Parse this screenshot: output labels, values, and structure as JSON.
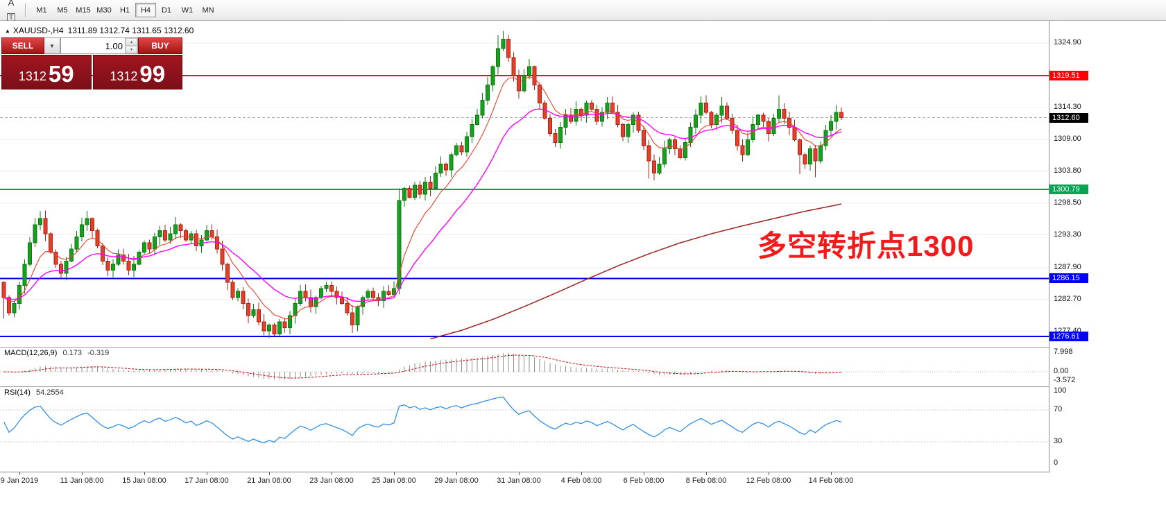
{
  "toolbar": {
    "icons": [
      {
        "name": "charts-list-icon",
        "glyph": "≡"
      },
      {
        "name": "text-label-icon",
        "glyph": "A"
      },
      {
        "name": "text-box-icon",
        "glyph": "T",
        "boxed": true
      },
      {
        "name": "drawing-tools-icon",
        "glyph": "✎",
        "caret": "▾"
      }
    ],
    "timeframes": [
      {
        "label": "M1"
      },
      {
        "label": "M5"
      },
      {
        "label": "M15"
      },
      {
        "label": "M30"
      },
      {
        "label": "H1"
      },
      {
        "label": "H4",
        "active": true
      },
      {
        "label": "D1"
      },
      {
        "label": "W1"
      },
      {
        "label": "MN"
      }
    ]
  },
  "symbol_header": {
    "expand_icon": "▲",
    "symbol": "XAUUSD-,H4",
    "ohlc": "1311.89 1312.74 1311.65 1312.60"
  },
  "trade_panel": {
    "sell_label": "SELL",
    "buy_label": "BUY",
    "lot_value": "1.00",
    "bid_prefix": "1312",
    "bid_big": "59",
    "ask_prefix": "1312",
    "ask_big": "99"
  },
  "annotation": {
    "text": "多空转折点1300",
    "color": "#f21b1b"
  },
  "indicators": {
    "macd": {
      "name": "MACD(12,26,9)",
      "value_main": "0.173",
      "value_signal": "-0.319",
      "axis_ticks": [
        {
          "label": "7.998",
          "value": 7.998
        },
        {
          "label": "0.00",
          "value": 0
        },
        {
          "label": "-3.572",
          "value": -3.572
        }
      ]
    },
    "rsi": {
      "name": "RSI(14)",
      "value": "54.2554",
      "axis_ticks": [
        {
          "label": "100",
          "value": 100
        },
        {
          "label": "70",
          "value": 70
        },
        {
          "label": "30",
          "value": 30
        },
        {
          "label": "0",
          "value": 0
        }
      ],
      "levels": [
        70,
        30
      ]
    }
  },
  "price_axis": {
    "ticks": [
      1324.9,
      1314.3,
      1309.0,
      1303.8,
      1298.5,
      1293.3,
      1287.9,
      1282.7,
      1277.4
    ],
    "level_labels": [
      {
        "text": "1319.51",
        "bg": "#ff0000",
        "price": 1319.51
      },
      {
        "text": "1312.60",
        "bg": "#000000",
        "price": 1312.6
      },
      {
        "text": "1300.79",
        "bg": "#00A651",
        "price": 1300.79
      },
      {
        "text": "1286.15",
        "bg": "#0000ff",
        "price": 1286.15
      },
      {
        "text": "1276.61",
        "bg": "#0000ff",
        "price": 1276.61
      }
    ]
  },
  "time_axis": {
    "labels": [
      "9 Jan 2019",
      "11 Jan 08:00",
      "15 Jan 08:00",
      "17 Jan 08:00",
      "21 Jan 08:00",
      "23 Jan 08:00",
      "25 Jan 08:00",
      "29 Jan 08:00",
      "31 Jan 08:00",
      "4 Feb 08:00",
      "6 Feb 08:00",
      "8 Feb 08:00",
      "12 Feb 08:00",
      "14 Feb 08:00"
    ]
  },
  "chart_data": {
    "type": "candlestick",
    "symbol": "XAUUSD-",
    "timeframe": "H4",
    "ohlc_current": {
      "open": 1311.89,
      "high": 1312.74,
      "low": 1311.65,
      "close": 1312.6
    },
    "first_open": 1285.5,
    "closes": [
      1283,
      1280.5,
      1282,
      1285,
      1288.5,
      1292,
      1295,
      1296,
      1293.5,
      1290.5,
      1288.5,
      1287,
      1289,
      1291,
      1293,
      1295,
      1296,
      1294,
      1291.5,
      1289,
      1287.5,
      1288.5,
      1290,
      1289,
      1287.5,
      1288.5,
      1290.5,
      1292,
      1291,
      1293,
      1294,
      1292.5,
      1293.5,
      1295,
      1294,
      1292.5,
      1293.5,
      1291.5,
      1292.5,
      1294,
      1293,
      1291,
      1288.5,
      1285.5,
      1283,
      1284,
      1282,
      1280,
      1281,
      1279,
      1277.5,
      1278.5,
      1277,
      1279,
      1278,
      1280,
      1282,
      1284,
      1283,
      1281.5,
      1283,
      1284.5,
      1285,
      1284,
      1283,
      1282,
      1280.5,
      1278.5,
      1281.5,
      1283,
      1284,
      1283,
      1282.5,
      1284,
      1283.5,
      1284.5,
      1299,
      1301,
      1299.5,
      1301.5,
      1300,
      1302,
      1301,
      1303.5,
      1305,
      1304,
      1306.5,
      1308,
      1307,
      1309.5,
      1311.5,
      1313,
      1315.5,
      1318,
      1321,
      1324,
      1325.5,
      1322.5,
      1319.5,
      1317,
      1319.5,
      1321,
      1318,
      1315,
      1312.5,
      1310,
      1308.5,
      1311,
      1313,
      1312,
      1314,
      1313,
      1315,
      1314,
      1312,
      1313.5,
      1315,
      1313.5,
      1311.5,
      1309.5,
      1311.5,
      1313,
      1310.5,
      1308,
      1305.5,
      1303.5,
      1305,
      1307.5,
      1309,
      1307.5,
      1306,
      1308.5,
      1311,
      1313,
      1315,
      1313.5,
      1311.5,
      1313,
      1314.5,
      1312.5,
      1310.5,
      1308,
      1306.5,
      1309,
      1311.5,
      1313,
      1312,
      1310,
      1312.5,
      1314,
      1312.5,
      1311,
      1309,
      1306.5,
      1305,
      1307.5,
      1305.5,
      1308,
      1310.5,
      1312,
      1313.5,
      1312.6
    ],
    "wick_overrides": {
      "0": {
        "l": 1279.5
      },
      "50": {
        "l": 1276.8
      },
      "52": {
        "l": 1276.7
      },
      "67": {
        "l": 1277.2
      },
      "76": {
        "l": 1283.5,
        "h": 1301.0
      },
      "95": {
        "h": 1326.2
      },
      "96": {
        "h": 1326.9
      },
      "124": {
        "l": 1302.6
      },
      "138": {
        "h": 1316.0
      },
      "149": {
        "h": 1316.3
      },
      "153": {
        "l": 1303.3
      },
      "156": {
        "l": 1302.8
      },
      "161": {
        "h": 1314.3
      }
    },
    "levels": [
      {
        "price": 1319.51,
        "color": "#ee1111",
        "width": 2
      },
      {
        "price": 1300.79,
        "color": "#00A651",
        "width": 2
      },
      {
        "price": 1286.15,
        "color": "#0000ee",
        "width": 2
      },
      {
        "price": 1276.61,
        "color": "#0000ee",
        "width": 2
      }
    ],
    "current_price_line": {
      "price": 1312.6,
      "color": "#ababab"
    },
    "moving_averages": [
      {
        "name": "fast-ma",
        "period": 8,
        "color": "#e8402a",
        "width": 1.1
      },
      {
        "name": "medium-ma",
        "period": 20,
        "color": "#ff00ff",
        "width": 1.4
      }
    ],
    "slow_ma": {
      "color": "#9e2420",
      "anchors": [
        [
          82,
          1276.2
        ],
        [
          88,
          1277.6
        ],
        [
          94,
          1279.4
        ],
        [
          100,
          1281.5
        ],
        [
          106,
          1283.7
        ],
        [
          112,
          1286.0
        ],
        [
          118,
          1288.2
        ],
        [
          124,
          1290.2
        ],
        [
          130,
          1292.0
        ],
        [
          136,
          1293.5
        ],
        [
          142,
          1294.8
        ],
        [
          148,
          1296.0
        ],
        [
          154,
          1297.2
        ],
        [
          161,
          1298.4
        ]
      ]
    },
    "candle_colors": {
      "up_fill": "#17a01e",
      "up_stroke": "#0b7a11",
      "down_fill": "#e3402c",
      "down_stroke": "#a82315"
    },
    "rsi_color": "#2f8fe8",
    "macd_hist_color": "#8f8f8f",
    "macd_signal_color": "#cc0000",
    "grid_color": "#ededed"
  }
}
